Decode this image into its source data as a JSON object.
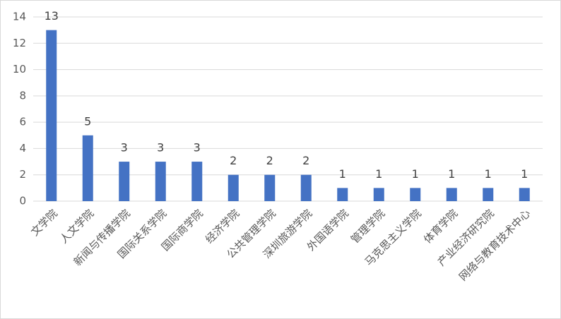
{
  "chart_data": {
    "type": "bar",
    "categories": [
      "文学院",
      "人文学院",
      "新闻与传播学院",
      "国际关系学院",
      "国际商学院",
      "经济学院",
      "公共管理学院",
      "深圳旅游学院",
      "外国语学院",
      "管理学院",
      "马克思主义学院",
      "体育学院",
      "产业经济研究院",
      "网络与教育技术中心"
    ],
    "values": [
      13,
      5,
      3,
      3,
      3,
      2,
      2,
      2,
      1,
      1,
      1,
      1,
      1,
      1
    ],
    "color": "#4472c4",
    "ylim": [
      0,
      14
    ],
    "yticks": [
      0,
      2,
      4,
      6,
      8,
      10,
      12,
      14
    ],
    "grid": true,
    "data_labels": true
  }
}
